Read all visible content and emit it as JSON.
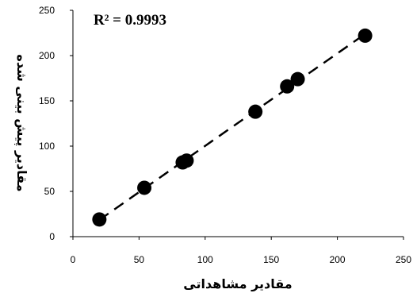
{
  "chart_data": {
    "type": "scatter",
    "title": "",
    "xlabel": "مقادیر مشاهداتی",
    "ylabel": "مقادیر پیش بینی شده",
    "annotation": "R² = 0.9993",
    "xlim": [
      0,
      250
    ],
    "ylim": [
      0,
      250
    ],
    "xticks": [
      "0",
      "50",
      "100",
      "150",
      "200",
      "250"
    ],
    "yticks": [
      "0",
      "50",
      "100",
      "150",
      "200",
      "250"
    ],
    "grid": false,
    "legend": "none",
    "marker_color": "#000000",
    "trendline": {
      "style": "dashed",
      "color": "#000000"
    },
    "series": [
      {
        "points": [
          {
            "x": 20,
            "y": 19
          },
          {
            "x": 54,
            "y": 54
          },
          {
            "x": 83,
            "y": 82
          },
          {
            "x": 86,
            "y": 84
          },
          {
            "x": 138,
            "y": 138
          },
          {
            "x": 162,
            "y": 166
          },
          {
            "x": 170,
            "y": 174
          },
          {
            "x": 221,
            "y": 222
          }
        ]
      }
    ]
  }
}
